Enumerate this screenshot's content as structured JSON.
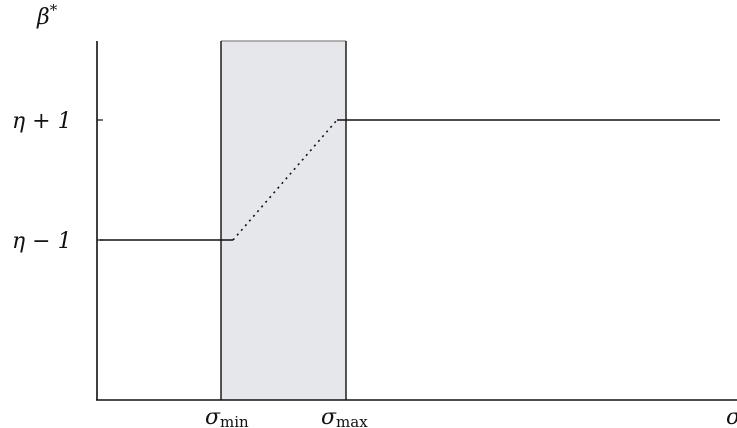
{
  "chart_data": {
    "type": "line",
    "x_axis": {
      "label": "σ",
      "ticks": [
        {
          "id": "sigma_min",
          "base": "σ",
          "sub": "min"
        },
        {
          "id": "sigma_max",
          "base": "σ",
          "sub": "max"
        }
      ]
    },
    "y_axis": {
      "label": "β*",
      "label_base": "β",
      "label_sup": "*",
      "ticks": [
        {
          "id": "eta_minus_1",
          "text": "η − 1"
        },
        {
          "id": "eta_plus_1",
          "text": "η + 1"
        }
      ]
    },
    "shaded_region": {
      "from": "sigma_min",
      "to": "sigma_max",
      "color": "#e6e7ea"
    },
    "segments": [
      {
        "style": "solid",
        "from": {
          "x": "start",
          "y": "eta_minus_1"
        },
        "to": {
          "x": "sigma_min",
          "y": "eta_minus_1"
        }
      },
      {
        "style": "dotted",
        "from": {
          "x": "sigma_min",
          "y": "eta_minus_1"
        },
        "to": {
          "x": "sigma_max",
          "y": "eta_plus_1"
        }
      },
      {
        "style": "solid",
        "from": {
          "x": "sigma_max",
          "y": "eta_plus_1"
        },
        "to": {
          "x": "end",
          "y": "eta_plus_1"
        }
      }
    ],
    "grid": false,
    "legend": "none"
  }
}
